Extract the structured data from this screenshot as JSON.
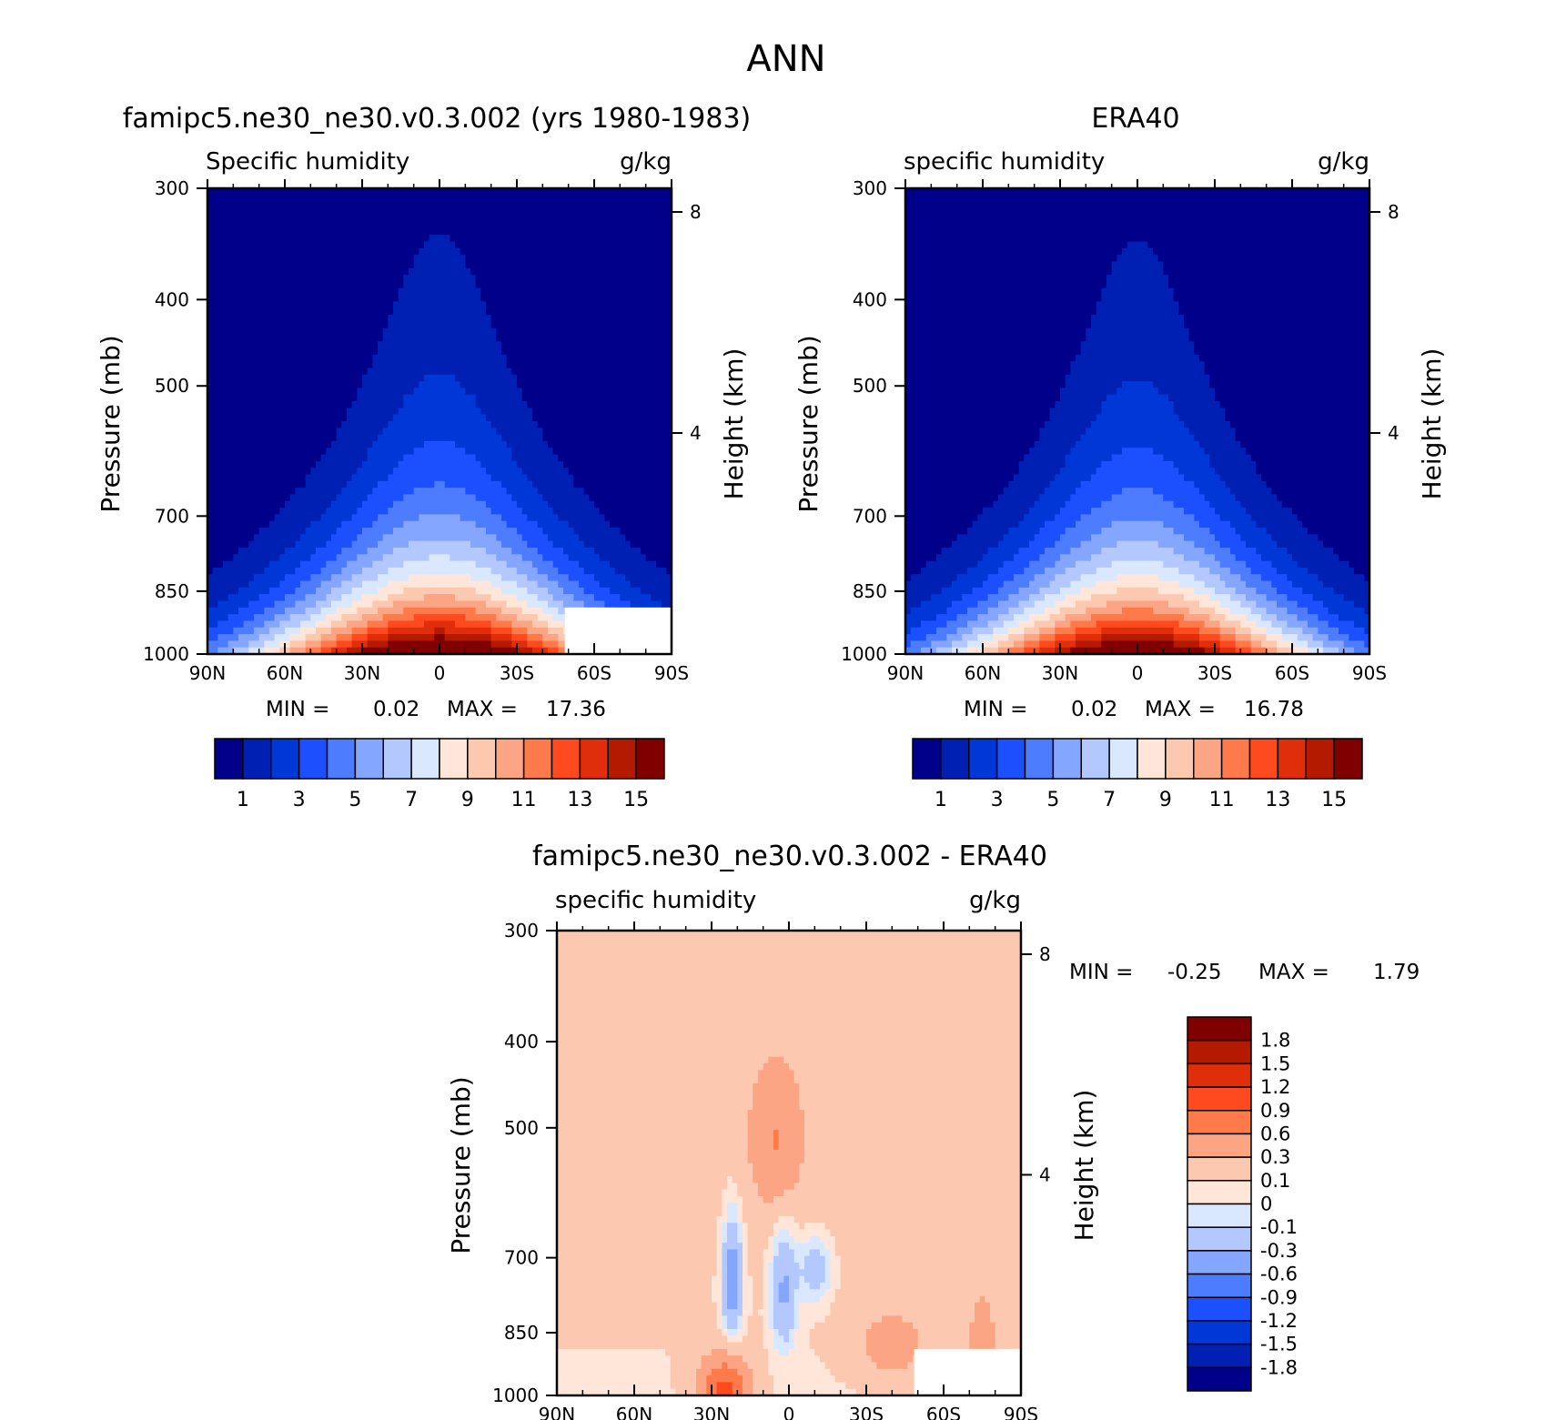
{
  "figure": {
    "title": "ANN"
  },
  "colors": {
    "abs_levels": [
      "#00008b",
      "#0020b3",
      "#0038d8",
      "#1c50ff",
      "#4d7cff",
      "#85a6ff",
      "#b3c8ff",
      "#d9e8ff",
      "#ffe6d9",
      "#fcc8b0",
      "#fca584",
      "#ff7a4a",
      "#ff4a1f",
      "#e02e0a",
      "#b31a00",
      "#800000"
    ],
    "diff_levels": [
      "#00008b",
      "#0020b3",
      "#0038d8",
      "#1c50ff",
      "#4d7cff",
      "#85a6ff",
      "#b3c8ff",
      "#d9e8ff",
      "#ffe6d9",
      "#fcc8b0",
      "#fca584",
      "#ff7a4a",
      "#ff4a1f",
      "#e02e0a",
      "#b31a00",
      "#800000"
    ],
    "missing": "#ffffff"
  },
  "chart_data": [
    {
      "type": "heatmap",
      "title": "famipc5.ne30_ne30.v0.3.002 (yrs 1980-1983)",
      "left_string": "Specific humidity",
      "right_string": "g/kg",
      "xlabel": "",
      "ylabel": "Pressure (mb)",
      "ylabel_right": "Height (km)",
      "x_ticks": [
        "90N",
        "60N",
        "30N",
        "0",
        "30S",
        "60S",
        "90S"
      ],
      "x_range": [
        90,
        -90
      ],
      "y_ticks": [
        "300",
        "400",
        "500",
        "700",
        "850",
        "1000"
      ],
      "y_range_mb": [
        300,
        1000
      ],
      "y_scale": "log",
      "right_ticks": [
        "4",
        "8"
      ],
      "min_max": {
        "min_label": "MIN =",
        "min": "0.02",
        "max_label": "MAX =",
        "max": "17.36"
      },
      "colorbar_labels": [
        "1",
        "3",
        "5",
        "7",
        "9",
        "11",
        "13",
        "15"
      ],
      "peak": 17.36,
      "spread": 1.0,
      "missing": true
    },
    {
      "type": "heatmap",
      "title": "ERA40",
      "left_string": "specific humidity",
      "right_string": "g/kg",
      "xlabel": "",
      "ylabel": "Pressure (mb)",
      "ylabel_right": "Height (km)",
      "x_ticks": [
        "90N",
        "60N",
        "30N",
        "0",
        "30S",
        "60S",
        "90S"
      ],
      "x_range": [
        90,
        -90
      ],
      "y_ticks": [
        "300",
        "400",
        "500",
        "700",
        "850",
        "1000"
      ],
      "y_range_mb": [
        300,
        1000
      ],
      "y_scale": "log",
      "right_ticks": [
        "4",
        "8"
      ],
      "min_max": {
        "min_label": "MIN =",
        "min": "0.02",
        "max_label": "MAX =",
        "max": "16.78"
      },
      "colorbar_labels": [
        "1",
        "3",
        "5",
        "7",
        "9",
        "11",
        "13",
        "15"
      ],
      "peak": 16.78,
      "spread": 0.95,
      "missing": false
    },
    {
      "type": "heatmap",
      "title": "famipc5.ne30_ne30.v0.3.002 - ERA40",
      "left_string": "specific humidity",
      "right_string": "g/kg",
      "xlabel": "",
      "ylabel": "Pressure (mb)",
      "ylabel_right": "Height (km)",
      "x_ticks": [
        "90N",
        "60N",
        "30N",
        "0",
        "30S",
        "60S",
        "90S"
      ],
      "x_range": [
        90,
        -90
      ],
      "y_ticks": [
        "300",
        "400",
        "500",
        "700",
        "850",
        "1000"
      ],
      "y_range_mb": [
        300,
        1000
      ],
      "y_scale": "log",
      "right_ticks": [
        "4",
        "8"
      ],
      "min_max": {
        "min_label": "MIN =",
        "min": "-0.25",
        "max_label": "MAX =",
        "max": "1.79"
      },
      "colorbar_labels": [
        "1.8",
        "1.5",
        "1.2",
        "0.9",
        "0.6",
        "0.3",
        "0.1",
        "0",
        "-0.1",
        "-0.3",
        "-0.6",
        "-0.9",
        "-1.2",
        "-1.5",
        "-1.8"
      ],
      "contour_levels": [
        -1.8,
        -1.5,
        -1.2,
        -0.9,
        -0.6,
        -0.3,
        -0.1,
        0,
        0.1,
        0.3,
        0.6,
        0.9,
        1.2,
        1.5,
        1.8
      ],
      "missing": true
    }
  ]
}
